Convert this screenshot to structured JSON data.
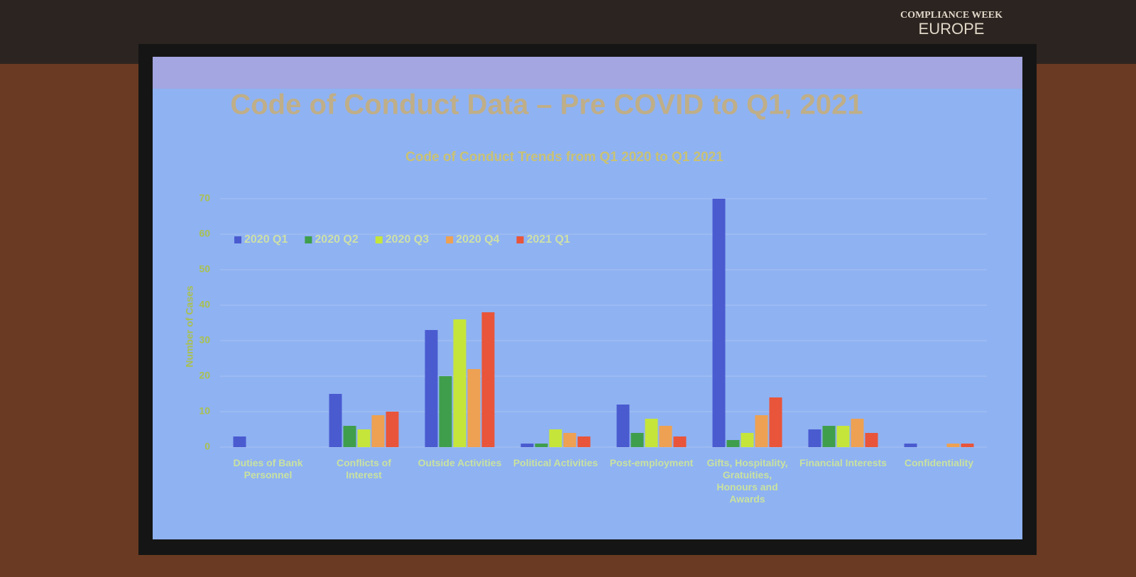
{
  "slide": {
    "title": "Code of Conduct Data – Pre COVID to Q1, 2021",
    "logo": [
      "COMPLIANCE WEEK",
      "EUROPE"
    ]
  },
  "chart_data": {
    "type": "bar",
    "title": "Code of Conduct Trends from Q1 2020 to Q1 2021",
    "y_label": "Number of Cases",
    "categories": [
      "Duties of Bank Personnel",
      "Conflicts of Interest",
      "Outside Activities",
      "Political Activities",
      "Post-employment",
      "Gifts, Hospitality, Gratuities, Honours and Awards",
      "Financial Interests",
      "Confidentiality"
    ],
    "series": [
      {
        "name": "2020 Q1",
        "color": "#4a5bd0",
        "values": [
          3,
          15,
          33,
          1,
          12,
          70,
          5,
          1
        ]
      },
      {
        "name": "2020 Q2",
        "color": "#3f9e4c",
        "values": [
          0,
          6,
          20,
          1,
          4,
          2,
          6,
          0
        ]
      },
      {
        "name": "2020 Q3",
        "color": "#c6e53a",
        "values": [
          0,
          5,
          36,
          5,
          8,
          4,
          6,
          0
        ]
      },
      {
        "name": "2020 Q4",
        "color": "#eea152",
        "values": [
          0,
          9,
          22,
          4,
          6,
          9,
          8,
          1
        ]
      },
      {
        "name": "2021 Q1",
        "color": "#e8553a",
        "values": [
          0,
          10,
          38,
          3,
          3,
          14,
          4,
          1
        ]
      }
    ],
    "ylim": [
      0,
      70
    ],
    "yticks": [
      0,
      10,
      20,
      30,
      40,
      50,
      60,
      70
    ],
    "grid": true,
    "legend": "top-left"
  }
}
